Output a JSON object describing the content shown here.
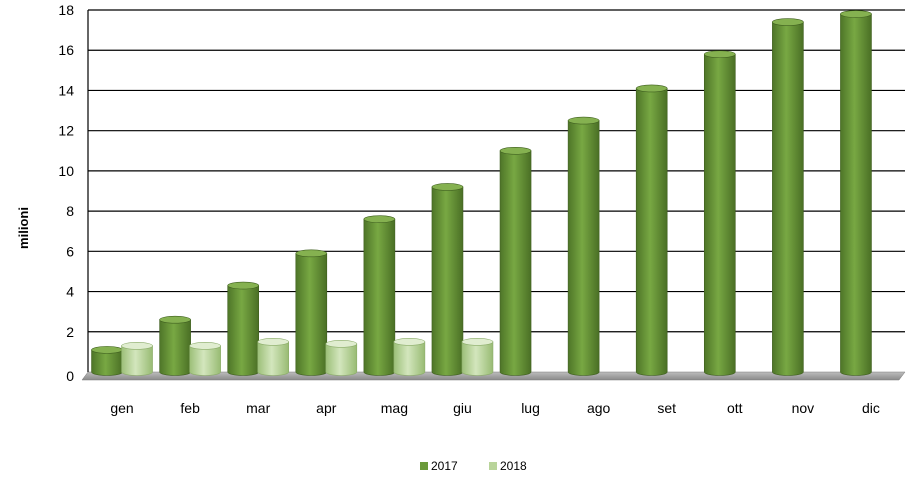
{
  "chart_data": {
    "type": "bar",
    "categories": [
      "gen",
      "feb",
      "mar",
      "apr",
      "mag",
      "giu",
      "lug",
      "ago",
      "set",
      "ott",
      "nov",
      "dic"
    ],
    "series": [
      {
        "name": "2017",
        "color": "#6b9a3a",
        "values": [
          1.1,
          2.6,
          4.3,
          5.9,
          7.6,
          9.2,
          11.0,
          12.5,
          14.1,
          15.8,
          17.4,
          17.8
        ]
      },
      {
        "name": "2018",
        "color": "#b9d49a",
        "values": [
          1.3,
          1.3,
          1.5,
          1.4,
          1.5,
          1.5,
          null,
          null,
          null,
          null,
          null,
          null
        ]
      }
    ],
    "title": "",
    "xlabel": "",
    "ylabel": "milioni",
    "ylim": [
      0,
      18
    ],
    "yticks": [
      0,
      2,
      4,
      6,
      8,
      10,
      12,
      14,
      16,
      18
    ],
    "grid": true,
    "legend_position": "bottom-center"
  }
}
